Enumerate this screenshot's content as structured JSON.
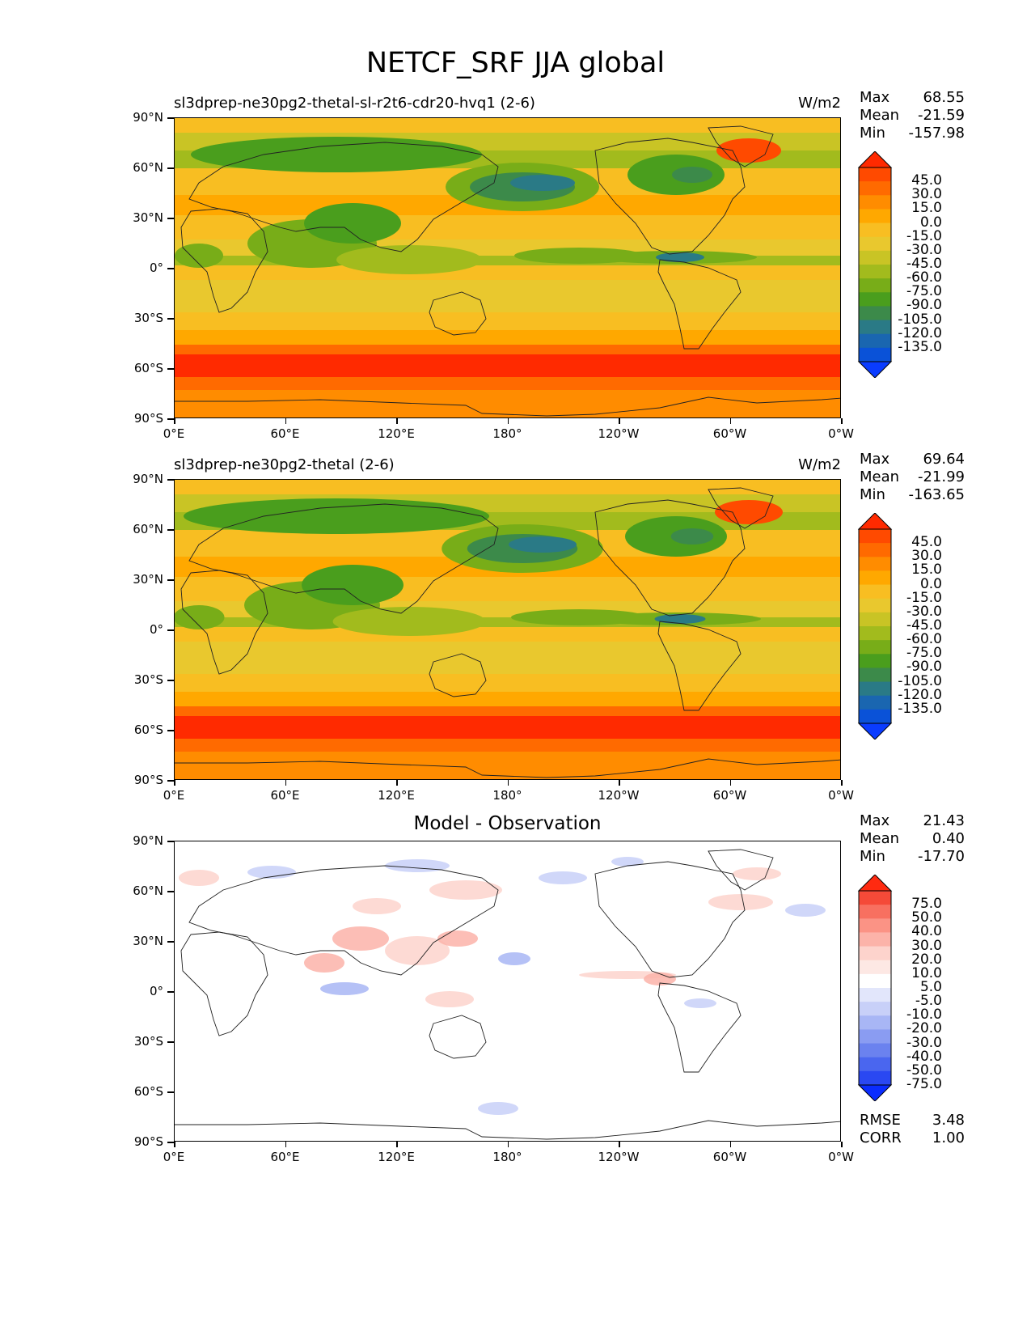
{
  "figure": {
    "title": "NETCF_SRF JJA global"
  },
  "axes": {
    "yticks": [
      "90°N",
      "60°N",
      "30°N",
      "0°",
      "30°S",
      "60°S",
      "90°S"
    ],
    "xticks": [
      "0°E",
      "60°E",
      "120°E",
      "180°",
      "120°W",
      "60°W",
      "0°W"
    ]
  },
  "panels": [
    {
      "id": "model",
      "title_left": "sl3dprep-ne30pg2-thetal-sl-r2t6-cdr20-hvq1 (2-6)",
      "units": "W/m2",
      "stats": [
        {
          "label": "Max",
          "value": "68.55"
        },
        {
          "label": "Mean",
          "value": "-21.59"
        },
        {
          "label": "Min",
          "value": "-157.98"
        }
      ],
      "colorbar_labels": [
        "45.0",
        "30.0",
        "15.0",
        "0.0",
        "-15.0",
        "-30.0",
        "-45.0",
        "-60.0",
        "-75.0",
        "-90.0",
        "-105.0",
        "-120.0",
        "-135.0"
      ]
    },
    {
      "id": "reference",
      "title_left": "sl3dprep-ne30pg2-thetal (2-6)",
      "units": "W/m2",
      "stats": [
        {
          "label": "Max",
          "value": "69.64"
        },
        {
          "label": "Mean",
          "value": "-21.99"
        },
        {
          "label": "Min",
          "value": "-163.65"
        }
      ],
      "colorbar_labels": [
        "45.0",
        "30.0",
        "15.0",
        "0.0",
        "-15.0",
        "-30.0",
        "-45.0",
        "-60.0",
        "-75.0",
        "-90.0",
        "-105.0",
        "-120.0",
        "-135.0"
      ]
    },
    {
      "id": "difference",
      "title_center": "Model - Observation",
      "stats": [
        {
          "label": "Max",
          "value": "21.43"
        },
        {
          "label": "Mean",
          "value": "0.40"
        },
        {
          "label": "Min",
          "value": "-17.70"
        }
      ],
      "extra_stats": [
        {
          "label": "RMSE",
          "value": "3.48"
        },
        {
          "label": "CORR",
          "value": "1.00"
        }
      ],
      "colorbar_labels": [
        "75.0",
        "50.0",
        "40.0",
        "30.0",
        "20.0",
        "10.0",
        "5.0",
        "-5.0",
        "-10.0",
        "-20.0",
        "-30.0",
        "-40.0",
        "-50.0",
        "-75.0"
      ]
    }
  ],
  "colors": {
    "field_levels": [
      "#ff2a00",
      "#ff4a00",
      "#ff6a00",
      "#ff8c00",
      "#ffa800",
      "#f8be22",
      "#e9c82e",
      "#c9c425",
      "#a2bb1d",
      "#78ad18",
      "#4a9e1d",
      "#3c8a4a",
      "#2a7a86",
      "#1a66b0",
      "#0a52d8",
      "#0a3cff"
    ],
    "diff_levels": [
      "#ff2a10",
      "#f54a38",
      "#f87060",
      "#fb9385",
      "#fcb3a9",
      "#fdd3cc",
      "#fde8e4",
      "#ffffff",
      "#e2e6fb",
      "#c8d0f8",
      "#a8b6f5",
      "#8a9cf2",
      "#6b82ef",
      "#4a66ef",
      "#2a48f2",
      "#0a2cff"
    ]
  }
}
